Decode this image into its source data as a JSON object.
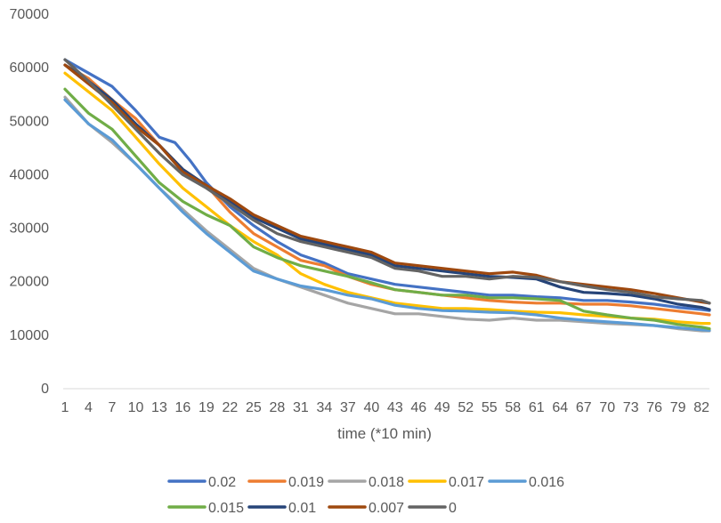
{
  "chart_data": {
    "type": "line",
    "title": "",
    "xlabel": "time (*10 min)",
    "ylabel": "",
    "ylim": [
      0,
      70000
    ],
    "y_ticks": [
      "0",
      "10000",
      "20000",
      "30000",
      "40000",
      "50000",
      "60000",
      "70000"
    ],
    "x_tick_labels": [
      "1",
      "4",
      "7",
      "10",
      "13",
      "16",
      "19",
      "22",
      "25",
      "28",
      "31",
      "34",
      "37",
      "40",
      "43",
      "46",
      "49",
      "52",
      "55",
      "58",
      "61",
      "64",
      "67",
      "70",
      "73",
      "76",
      "79",
      "82"
    ],
    "x_range": [
      1,
      83
    ],
    "grid": false,
    "legend_position": "bottom",
    "series": [
      {
        "name": "0.02",
        "color": "#4472C4",
        "points": [
          [
            1,
            61500
          ],
          [
            4,
            59000
          ],
          [
            7,
            56500
          ],
          [
            10,
            52000
          ],
          [
            13,
            47000
          ],
          [
            15,
            46000
          ],
          [
            17,
            42500
          ],
          [
            19,
            38500
          ],
          [
            22,
            34000
          ],
          [
            25,
            30500
          ],
          [
            28,
            27500
          ],
          [
            31,
            25000
          ],
          [
            34,
            23500
          ],
          [
            37,
            21500
          ],
          [
            40,
            20500
          ],
          [
            43,
            19500
          ],
          [
            46,
            19000
          ],
          [
            49,
            18500
          ],
          [
            52,
            18000
          ],
          [
            55,
            17500
          ],
          [
            58,
            17500
          ],
          [
            61,
            17200
          ],
          [
            64,
            17000
          ],
          [
            67,
            16500
          ],
          [
            70,
            16500
          ],
          [
            73,
            16200
          ],
          [
            76,
            15800
          ],
          [
            79,
            15200
          ],
          [
            82,
            14800
          ],
          [
            83,
            14600
          ]
        ]
      },
      {
        "name": "0.019",
        "color": "#ED7D31",
        "points": [
          [
            1,
            60500
          ],
          [
            4,
            58000
          ],
          [
            7,
            54000
          ],
          [
            10,
            50500
          ],
          [
            13,
            45500
          ],
          [
            16,
            41000
          ],
          [
            19,
            38000
          ],
          [
            22,
            33000
          ],
          [
            25,
            29000
          ],
          [
            28,
            26500
          ],
          [
            31,
            24000
          ],
          [
            34,
            23000
          ],
          [
            37,
            21000
          ],
          [
            40,
            19500
          ],
          [
            43,
            18500
          ],
          [
            46,
            18000
          ],
          [
            49,
            17500
          ],
          [
            52,
            17000
          ],
          [
            55,
            16500
          ],
          [
            58,
            16200
          ],
          [
            61,
            16000
          ],
          [
            64,
            16000
          ],
          [
            67,
            15800
          ],
          [
            70,
            15800
          ],
          [
            73,
            15500
          ],
          [
            76,
            15000
          ],
          [
            79,
            14500
          ],
          [
            82,
            14000
          ],
          [
            83,
            13800
          ]
        ]
      },
      {
        "name": "0.018",
        "color": "#A5A5A5",
        "points": [
          [
            1,
            54500
          ],
          [
            4,
            49500
          ],
          [
            7,
            46000
          ],
          [
            10,
            42000
          ],
          [
            13,
            37500
          ],
          [
            16,
            33500
          ],
          [
            19,
            29500
          ],
          [
            22,
            26000
          ],
          [
            25,
            22500
          ],
          [
            28,
            20500
          ],
          [
            31,
            19000
          ],
          [
            34,
            17500
          ],
          [
            37,
            16000
          ],
          [
            40,
            15000
          ],
          [
            43,
            14000
          ],
          [
            46,
            14000
          ],
          [
            49,
            13500
          ],
          [
            52,
            13000
          ],
          [
            55,
            12800
          ],
          [
            58,
            13200
          ],
          [
            61,
            12800
          ],
          [
            64,
            12800
          ],
          [
            67,
            12500
          ],
          [
            70,
            12200
          ],
          [
            73,
            12000
          ],
          [
            76,
            11800
          ],
          [
            79,
            11200
          ],
          [
            82,
            10800
          ],
          [
            83,
            10800
          ]
        ]
      },
      {
        "name": "0.017",
        "color": "#FFC000",
        "points": [
          [
            1,
            59000
          ],
          [
            4,
            55500
          ],
          [
            7,
            52000
          ],
          [
            10,
            47000
          ],
          [
            13,
            42000
          ],
          [
            16,
            37500
          ],
          [
            19,
            34000
          ],
          [
            22,
            30500
          ],
          [
            25,
            27500
          ],
          [
            28,
            25000
          ],
          [
            31,
            21500
          ],
          [
            34,
            19500
          ],
          [
            37,
            18000
          ],
          [
            40,
            17000
          ],
          [
            43,
            16000
          ],
          [
            46,
            15500
          ],
          [
            49,
            15000
          ],
          [
            52,
            15000
          ],
          [
            55,
            14800
          ],
          [
            58,
            14500
          ],
          [
            61,
            14300
          ],
          [
            64,
            14200
          ],
          [
            67,
            13800
          ],
          [
            70,
            13500
          ],
          [
            73,
            13200
          ],
          [
            76,
            13000
          ],
          [
            79,
            12500
          ],
          [
            82,
            12200
          ],
          [
            83,
            12200
          ]
        ]
      },
      {
        "name": "0.016",
        "color": "#5B9BD5",
        "points": [
          [
            1,
            54000
          ],
          [
            4,
            49500
          ],
          [
            7,
            46500
          ],
          [
            10,
            42000
          ],
          [
            13,
            37500
          ],
          [
            16,
            33000
          ],
          [
            19,
            29000
          ],
          [
            22,
            25500
          ],
          [
            25,
            22000
          ],
          [
            28,
            20500
          ],
          [
            31,
            19200
          ],
          [
            34,
            18500
          ],
          [
            37,
            17500
          ],
          [
            40,
            16800
          ],
          [
            43,
            15600
          ],
          [
            46,
            15000
          ],
          [
            49,
            14600
          ],
          [
            52,
            14500
          ],
          [
            55,
            14300
          ],
          [
            58,
            14200
          ],
          [
            61,
            13800
          ],
          [
            64,
            13200
          ],
          [
            67,
            12800
          ],
          [
            70,
            12500
          ],
          [
            73,
            12200
          ],
          [
            76,
            11800
          ],
          [
            79,
            11400
          ],
          [
            82,
            11000
          ],
          [
            83,
            10900
          ]
        ]
      },
      {
        "name": "0.015",
        "color": "#70AD47",
        "points": [
          [
            1,
            56000
          ],
          [
            4,
            51500
          ],
          [
            7,
            48500
          ],
          [
            10,
            43500
          ],
          [
            13,
            38500
          ],
          [
            16,
            35000
          ],
          [
            19,
            32500
          ],
          [
            22,
            30500
          ],
          [
            25,
            26500
          ],
          [
            28,
            24500
          ],
          [
            31,
            23000
          ],
          [
            34,
            22000
          ],
          [
            37,
            21000
          ],
          [
            40,
            19800
          ],
          [
            43,
            18500
          ],
          [
            46,
            18000
          ],
          [
            49,
            17500
          ],
          [
            52,
            17500
          ],
          [
            55,
            17000
          ],
          [
            58,
            17000
          ],
          [
            61,
            16800
          ],
          [
            64,
            16500
          ],
          [
            67,
            14500
          ],
          [
            70,
            13800
          ],
          [
            73,
            13200
          ],
          [
            76,
            12800
          ],
          [
            79,
            12000
          ],
          [
            82,
            11500
          ],
          [
            83,
            11200
          ]
        ]
      },
      {
        "name": "0.01",
        "color": "#264478",
        "points": [
          [
            1,
            60500
          ],
          [
            4,
            57500
          ],
          [
            7,
            54000
          ],
          [
            10,
            49500
          ],
          [
            13,
            45500
          ],
          [
            16,
            41000
          ],
          [
            19,
            38000
          ],
          [
            22,
            35000
          ],
          [
            25,
            32000
          ],
          [
            28,
            30000
          ],
          [
            31,
            28000
          ],
          [
            34,
            27000
          ],
          [
            37,
            26000
          ],
          [
            40,
            25000
          ],
          [
            43,
            23000
          ],
          [
            46,
            22500
          ],
          [
            49,
            22000
          ],
          [
            52,
            21500
          ],
          [
            55,
            21000
          ],
          [
            58,
            20800
          ],
          [
            61,
            20500
          ],
          [
            64,
            19000
          ],
          [
            67,
            18000
          ],
          [
            70,
            17800
          ],
          [
            73,
            17500
          ],
          [
            76,
            16800
          ],
          [
            79,
            15800
          ],
          [
            82,
            15200
          ],
          [
            83,
            14800
          ]
        ]
      },
      {
        "name": "0.007",
        "color": "#9E480E",
        "points": [
          [
            1,
            60500
          ],
          [
            4,
            57000
          ],
          [
            7,
            53500
          ],
          [
            10,
            49000
          ],
          [
            13,
            45500
          ],
          [
            16,
            40500
          ],
          [
            19,
            38000
          ],
          [
            22,
            35500
          ],
          [
            25,
            32500
          ],
          [
            28,
            30500
          ],
          [
            31,
            28500
          ],
          [
            34,
            27500
          ],
          [
            37,
            26500
          ],
          [
            40,
            25500
          ],
          [
            43,
            23500
          ],
          [
            46,
            23000
          ],
          [
            49,
            22500
          ],
          [
            52,
            22000
          ],
          [
            55,
            21500
          ],
          [
            58,
            21800
          ],
          [
            61,
            21200
          ],
          [
            64,
            20000
          ],
          [
            67,
            19500
          ],
          [
            70,
            19000
          ],
          [
            73,
            18500
          ],
          [
            76,
            17800
          ],
          [
            79,
            17000
          ],
          [
            82,
            16200
          ],
          [
            83,
            16000
          ]
        ]
      },
      {
        "name": "0",
        "color": "#636363",
        "points": [
          [
            1,
            61500
          ],
          [
            4,
            57500
          ],
          [
            7,
            53000
          ],
          [
            10,
            48500
          ],
          [
            13,
            44000
          ],
          [
            16,
            40000
          ],
          [
            19,
            37500
          ],
          [
            22,
            34500
          ],
          [
            25,
            31500
          ],
          [
            28,
            29000
          ],
          [
            31,
            27500
          ],
          [
            34,
            26500
          ],
          [
            37,
            25500
          ],
          [
            40,
            24500
          ],
          [
            43,
            22500
          ],
          [
            46,
            22000
          ],
          [
            49,
            21000
          ],
          [
            52,
            21000
          ],
          [
            55,
            20500
          ],
          [
            58,
            21000
          ],
          [
            61,
            20800
          ],
          [
            64,
            20000
          ],
          [
            67,
            19200
          ],
          [
            70,
            18500
          ],
          [
            73,
            18000
          ],
          [
            76,
            17200
          ],
          [
            79,
            16800
          ],
          [
            82,
            16500
          ],
          [
            83,
            16000
          ]
        ]
      }
    ]
  }
}
